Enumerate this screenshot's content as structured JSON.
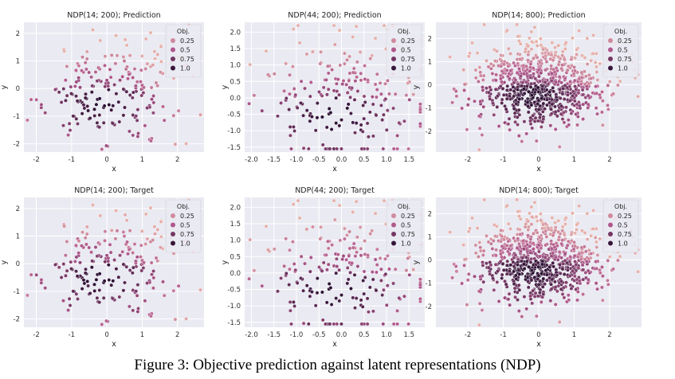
{
  "caption": "Figure 3: Objective prediction against latent representations (NDP)",
  "colors": {
    "panel_bg": "#eaeaf2",
    "grid": "#ffffff",
    "hue_low": "#f4c7b2",
    "hue_high": "#2a0f32"
  },
  "chart_data": [
    {
      "type": "scatter",
      "title": "NDP(14; 200); Prediction",
      "xlabel": "x",
      "ylabel": "y",
      "xlim": [
        -2.35,
        2.75
      ],
      "ylim": [
        -2.3,
        2.4
      ],
      "xticks": [
        -2,
        -1,
        0,
        1,
        2
      ],
      "yticks": [
        -2,
        -1,
        0,
        1,
        2
      ],
      "legend": {
        "title": "Obj.",
        "entries": [
          "0.25",
          "0.5",
          "0.75",
          "1.0"
        ],
        "position": "top-right"
      },
      "grid": true,
      "n_points": 200,
      "seed": 11
    },
    {
      "type": "scatter",
      "title": "NDP(44; 200); Prediction",
      "xlabel": "x",
      "ylabel": "y",
      "xlim": [
        -2.15,
        1.85
      ],
      "ylim": [
        -1.65,
        2.3
      ],
      "xticks": [
        -2.0,
        -1.5,
        -1.0,
        -0.5,
        0.0,
        0.5,
        1.0,
        1.5
      ],
      "yticks": [
        -1.5,
        -1.0,
        -0.5,
        0.0,
        0.5,
        1.0,
        1.5,
        2.0
      ],
      "legend": {
        "title": "Obj.",
        "entries": [
          "0.25",
          "0.5",
          "0.75",
          "1.0"
        ],
        "position": "top-right"
      },
      "grid": true,
      "n_points": 200,
      "seed": 23
    },
    {
      "type": "scatter",
      "title": "NDP(14; 800); Prediction",
      "xlabel": "x",
      "ylabel": "y",
      "xlim": [
        -2.9,
        2.9
      ],
      "ylim": [
        -2.9,
        2.7
      ],
      "xticks": [
        -2,
        -1,
        0,
        1,
        2
      ],
      "yticks": [
        -2,
        -1,
        0,
        1,
        2
      ],
      "legend": {
        "title": "Obj.",
        "entries": [
          "0.25",
          "0.5",
          "0.75",
          "1.0"
        ],
        "position": "top-right"
      },
      "grid": true,
      "n_points": 800,
      "seed": 37
    },
    {
      "type": "scatter",
      "title": "NDP(14; 200); Target",
      "xlabel": "x",
      "ylabel": "y",
      "xlim": [
        -2.35,
        2.75
      ],
      "ylim": [
        -2.3,
        2.4
      ],
      "xticks": [
        -2,
        -1,
        0,
        1,
        2
      ],
      "yticks": [
        -2,
        -1,
        0,
        1,
        2
      ],
      "legend": {
        "title": "Obj.",
        "entries": [
          "0.25",
          "0.5",
          "0.75",
          "1.0"
        ],
        "position": "top-right"
      },
      "grid": true,
      "n_points": 200,
      "seed": 11
    },
    {
      "type": "scatter",
      "title": "NDP(44; 200); Target",
      "xlabel": "x",
      "ylabel": "y",
      "xlim": [
        -2.15,
        1.85
      ],
      "ylim": [
        -1.65,
        2.3
      ],
      "xticks": [
        -2.0,
        -1.5,
        -1.0,
        -0.5,
        0.0,
        0.5,
        1.0,
        1.5
      ],
      "yticks": [
        -1.5,
        -1.0,
        -0.5,
        0.0,
        0.5,
        1.0,
        1.5,
        2.0
      ],
      "legend": {
        "title": "Obj.",
        "entries": [
          "0.25",
          "0.5",
          "0.75",
          "1.0"
        ],
        "position": "top-right"
      },
      "grid": true,
      "n_points": 200,
      "seed": 23
    },
    {
      "type": "scatter",
      "title": "NDP(14; 800); Target",
      "xlabel": "x",
      "ylabel": "y",
      "xlim": [
        -2.9,
        2.9
      ],
      "ylim": [
        -2.9,
        2.7
      ],
      "xticks": [
        -2,
        -1,
        0,
        1,
        2
      ],
      "yticks": [
        -2,
        -1,
        0,
        1,
        2
      ],
      "legend": {
        "title": "Obj.",
        "entries": [
          "0.25",
          "0.5",
          "0.75",
          "1.0"
        ],
        "position": "top-right"
      },
      "grid": true,
      "n_points": 800,
      "seed": 37
    }
  ]
}
